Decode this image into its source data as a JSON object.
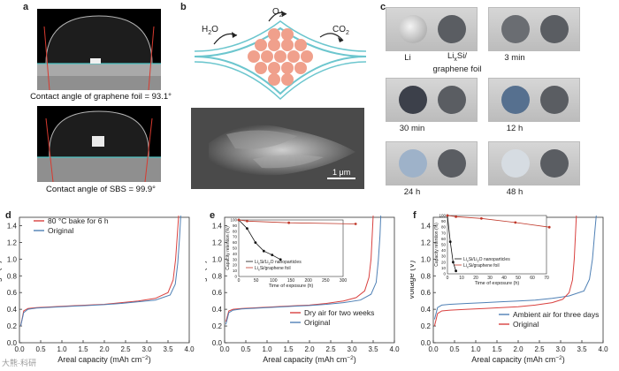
{
  "panel_labels": {
    "a": "a",
    "b": "b",
    "c": "c",
    "d": "d",
    "e": "e",
    "f": "f"
  },
  "panel_a": {
    "caption_top": "Contact angle of graphene foil = 93.1°",
    "caption_bottom": "Contact angle of SBS = 99.9°"
  },
  "panel_b": {
    "h2o_base": "H",
    "h2o_sub": "2",
    "h2o_tail": "O",
    "o2_base": "O",
    "o2_sub": "2",
    "co2_base": "CO",
    "co2_sub": "2",
    "scale_bar": "1 μm"
  },
  "panel_c": {
    "tiles": [
      {
        "left_label": "Li",
        "right_label": "Li_xSi/ graphene foil",
        "time": ""
      },
      {
        "time": "3 min"
      },
      {
        "time": "30 min"
      },
      {
        "time": "12 h"
      },
      {
        "time": "24 h"
      },
      {
        "time": "48 h"
      }
    ],
    "li_label": "Li",
    "lisi_base": "Li",
    "lisi_sub": "x",
    "lisi_tail": "Si/",
    "lisi_line2": "graphene foil",
    "t1": "3 min",
    "t2": "30 min",
    "t3": "12 h",
    "t4": "24 h",
    "t5": "48 h"
  },
  "chart_data": [
    {
      "type": "line",
      "panel": "d",
      "xlabel_main": "Areal capacity (mAh cm",
      "xlabel_sup": "−2",
      "xlabel_end": ")",
      "ylabel": "Voltage (V)",
      "xlim": [
        0,
        4.0
      ],
      "ylim": [
        0,
        1.5
      ],
      "xticks": [
        "0.0",
        "0.5",
        "1.0",
        "1.5",
        "2.0",
        "2.5",
        "3.0",
        "3.5",
        "4.0"
      ],
      "yticks": [
        "0.0",
        "0.2",
        "0.4",
        "0.6",
        "0.8",
        "1.0",
        "1.2",
        "1.4"
      ],
      "legend": [
        "80 °C bake for 6 h",
        "Original"
      ],
      "series": [
        {
          "name": "80 °C bake for 6 h",
          "color": "#d9413f",
          "x": [
            0.03,
            0.1,
            0.2,
            0.4,
            0.8,
            1.2,
            1.6,
            2.0,
            2.4,
            2.8,
            3.2,
            3.5,
            3.62,
            3.68,
            3.72,
            3.75
          ],
          "y": [
            0.2,
            0.38,
            0.41,
            0.42,
            0.43,
            0.44,
            0.45,
            0.46,
            0.48,
            0.5,
            0.53,
            0.6,
            0.75,
            1.0,
            1.3,
            1.52
          ]
        },
        {
          "name": "Original",
          "color": "#4f80b5",
          "x": [
            0.03,
            0.1,
            0.2,
            0.4,
            0.8,
            1.2,
            1.6,
            2.0,
            2.4,
            2.8,
            3.2,
            3.55,
            3.67,
            3.73,
            3.77,
            3.8
          ],
          "y": [
            0.2,
            0.36,
            0.4,
            0.415,
            0.425,
            0.435,
            0.445,
            0.455,
            0.47,
            0.49,
            0.51,
            0.57,
            0.7,
            0.95,
            1.25,
            1.52
          ]
        }
      ]
    },
    {
      "type": "line",
      "panel": "e",
      "xlabel_main": "Areal capacity (mAh cm",
      "xlabel_sup": "−2",
      "xlabel_end": ")",
      "ylabel": "Voltage (V)",
      "xlim": [
        0,
        4.0
      ],
      "ylim": [
        0,
        1.5
      ],
      "xticks": [
        "0.0",
        "0.5",
        "1.0",
        "1.5",
        "2.0",
        "2.5",
        "3.0",
        "3.5",
        "4.0"
      ],
      "yticks": [
        "0.0",
        "0.2",
        "0.4",
        "0.6",
        "0.8",
        "1.0",
        "1.2",
        "1.4"
      ],
      "legend": [
        "Dry air for two weeks",
        "Original"
      ],
      "series": [
        {
          "name": "Dry air for two weeks",
          "color": "#d9413f",
          "x": [
            0.03,
            0.1,
            0.2,
            0.4,
            0.8,
            1.2,
            1.6,
            2.0,
            2.4,
            2.8,
            3.1,
            3.3,
            3.4,
            3.45,
            3.48,
            3.5
          ],
          "y": [
            0.25,
            0.38,
            0.4,
            0.41,
            0.42,
            0.43,
            0.44,
            0.45,
            0.47,
            0.5,
            0.54,
            0.62,
            0.78,
            1.0,
            1.3,
            1.52
          ]
        },
        {
          "name": "Original",
          "color": "#4f80b5",
          "x": [
            0.03,
            0.1,
            0.2,
            0.4,
            0.8,
            1.2,
            1.6,
            2.0,
            2.4,
            2.8,
            3.2,
            3.45,
            3.57,
            3.62,
            3.66,
            3.68
          ],
          "y": [
            0.22,
            0.36,
            0.39,
            0.405,
            0.415,
            0.425,
            0.435,
            0.445,
            0.46,
            0.48,
            0.51,
            0.58,
            0.72,
            0.98,
            1.28,
            1.52
          ]
        }
      ],
      "inset": {
        "xlabel": "Time of exposure (h)",
        "ylabel": "Capacity retention (%)",
        "xlim": [
          0,
          300
        ],
        "ylim": [
          0,
          100
        ],
        "xticks": [
          "0",
          "50",
          "100",
          "150",
          "200",
          "250",
          "300"
        ],
        "yticks": [
          "0",
          "10",
          "20",
          "30",
          "40",
          "50",
          "60",
          "70",
          "80",
          "90",
          "100"
        ],
        "legend_1_base": "Li",
        "legend_1_sub": "x",
        "legend_1_mid": "Si/Li",
        "legend_1_sub2": "2",
        "legend_1_tail": "O nanoparticles",
        "legend_2_base": "Li",
        "legend_2_sub": "x",
        "legend_2_tail": "Si/graphene foil",
        "series": [
          {
            "name": "LixSi/Li2O nanoparticles",
            "color": "#111111",
            "x": [
              0,
              24,
              48,
              72,
              96,
              120
            ],
            "y": [
              100,
              85,
              60,
              45,
              38,
              30
            ]
          },
          {
            "name": "LixSi/graphene foil",
            "color": "#c0392b",
            "x": [
              0,
              24,
              144,
              336
            ],
            "y": [
              100,
              98,
              95,
              93
            ]
          }
        ]
      }
    },
    {
      "type": "line",
      "panel": "f",
      "xlabel_main": "Areal capacity (mAh cm",
      "xlabel_sup": "−2",
      "xlabel_end": ")",
      "ylabel": "Voltage (V)",
      "xlim": [
        0,
        4.0
      ],
      "ylim": [
        0,
        1.5
      ],
      "xticks": [
        "0.0",
        "0.5",
        "1.0",
        "1.5",
        "2.0",
        "2.5",
        "3.0",
        "3.5",
        "4.0"
      ],
      "yticks": [
        "0.0",
        "0.2",
        "0.4",
        "0.6",
        "0.8",
        "1.0",
        "1.2",
        "1.4"
      ],
      "legend": [
        "Ambient air for three days",
        "Original"
      ],
      "series": [
        {
          "name": "Ambient air for three days",
          "color": "#4f80b5",
          "x": [
            0.03,
            0.1,
            0.2,
            0.4,
            0.8,
            1.2,
            1.6,
            2.0,
            2.4,
            2.8,
            3.2,
            3.55,
            3.68,
            3.75,
            3.8,
            3.84
          ],
          "y": [
            0.28,
            0.42,
            0.45,
            0.46,
            0.47,
            0.48,
            0.49,
            0.5,
            0.51,
            0.53,
            0.56,
            0.62,
            0.76,
            1.0,
            1.3,
            1.52
          ]
        },
        {
          "name": "Original",
          "color": "#d9413f",
          "x": [
            0.03,
            0.1,
            0.2,
            0.4,
            0.8,
            1.2,
            1.6,
            2.0,
            2.4,
            2.8,
            3.05,
            3.2,
            3.28,
            3.32,
            3.35,
            3.37
          ],
          "y": [
            0.2,
            0.35,
            0.38,
            0.39,
            0.4,
            0.41,
            0.42,
            0.43,
            0.45,
            0.48,
            0.52,
            0.6,
            0.75,
            1.0,
            1.3,
            1.52
          ]
        }
      ],
      "inset": {
        "xlabel": "Time of exposure (h)",
        "ylabel": "Capacity retention (%)",
        "xlim": [
          0,
          70
        ],
        "ylim": [
          0,
          100
        ],
        "xticks": [
          "0",
          "10",
          "20",
          "30",
          "40",
          "50",
          "60",
          "70"
        ],
        "yticks": [
          "0",
          "10",
          "20",
          "30",
          "40",
          "50",
          "60",
          "70",
          "80",
          "90",
          "100"
        ],
        "legend_1_base": "Li",
        "legend_1_sub": "x",
        "legend_1_mid": "Si/Li",
        "legend_1_sub2": "2",
        "legend_1_tail": "O nanoparticles",
        "legend_2_base": "Li",
        "legend_2_sub": "x",
        "legend_2_tail": "Si/graphene foil",
        "series": [
          {
            "name": "LixSi/Li2O nanoparticles",
            "color": "#111111",
            "x": [
              0,
              2,
              4,
              6
            ],
            "y": [
              100,
              55,
              20,
              5
            ]
          },
          {
            "name": "LixSi/graphene foil",
            "color": "#c0392b",
            "x": [
              0,
              6,
              24,
              48,
              72
            ],
            "y": [
              100,
              98,
              95,
              88,
              80
            ]
          }
        ]
      }
    }
  ],
  "watermark": "大熊·科研"
}
